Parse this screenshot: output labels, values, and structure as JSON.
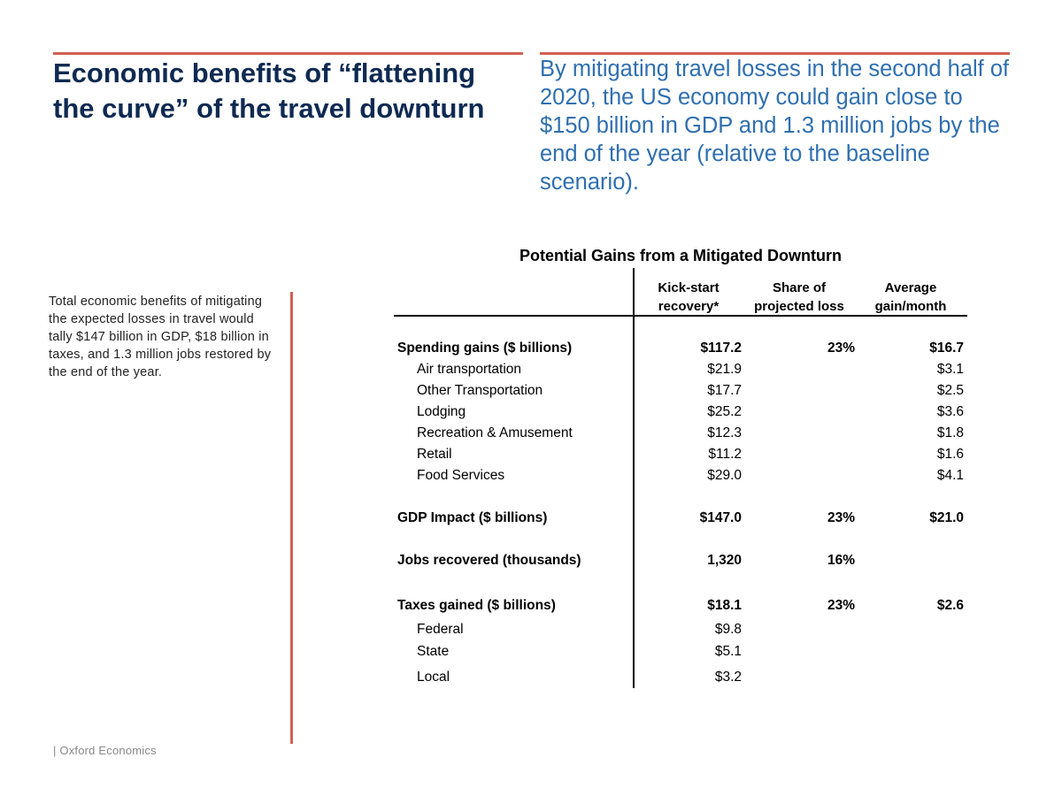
{
  "header": {
    "title": "Economic benefits of “flattening the curve” of the travel downturn",
    "subtitle": "By mitigating travel losses in the second half of 2020, the US economy could gain close to $150 billion in GDP and 1.3 million jobs by the end of the year (relative to the baseline scenario)."
  },
  "sidebar": {
    "text": "Total economic benefits of mitigating the expected losses in travel would tally $147 billion in GDP, $18 billion in taxes, and 1.3 million jobs restored by the end of the year."
  },
  "footer": {
    "source": "| Oxford Economics"
  },
  "table": {
    "title": "Potential Gains from a Mitigated Downturn",
    "columns": [
      {
        "line1": "Kick-start",
        "line2": "recovery*"
      },
      {
        "line1": "Share of",
        "line2": "projected loss"
      },
      {
        "line1": "Average",
        "line2": "gain/month"
      }
    ],
    "rows": [
      {
        "label": "Spending gains ($ billions)",
        "recovery": "$117.2",
        "share": "23%",
        "monthly": "$16.7"
      },
      {
        "label": "Air transportation",
        "recovery": "$21.9",
        "share": "",
        "monthly": "$3.1"
      },
      {
        "label": "Other Transportation",
        "recovery": "$17.7",
        "share": "",
        "monthly": "$2.5"
      },
      {
        "label": "Lodging",
        "recovery": "$25.2",
        "share": "",
        "monthly": "$3.6"
      },
      {
        "label": "Recreation & Amusement",
        "recovery": "$12.3",
        "share": "",
        "monthly": "$1.8"
      },
      {
        "label": "Retail",
        "recovery": "$11.2",
        "share": "",
        "monthly": "$1.6"
      },
      {
        "label": "Food Services",
        "recovery": "$29.0",
        "share": "",
        "monthly": "$4.1"
      },
      {
        "label": "GDP Impact ($ billions)",
        "recovery": "$147.0",
        "share": "23%",
        "monthly": "$21.0"
      },
      {
        "label": "Jobs recovered (thousands)",
        "recovery": "1,320",
        "share": "16%",
        "monthly": ""
      },
      {
        "label": "Taxes gained ($ billions)",
        "recovery": "$18.1",
        "share": "23%",
        "monthly": "$2.6"
      },
      {
        "label": "Federal",
        "recovery": "$9.8",
        "share": "",
        "monthly": ""
      },
      {
        "label": "State",
        "recovery": "$5.1",
        "share": "",
        "monthly": ""
      },
      {
        "label": "Local",
        "recovery": "$3.2",
        "share": "",
        "monthly": ""
      }
    ]
  },
  "colors": {
    "accent": "#d0614f",
    "title": "#0e2a52",
    "subtitle": "#2f6fb0"
  }
}
